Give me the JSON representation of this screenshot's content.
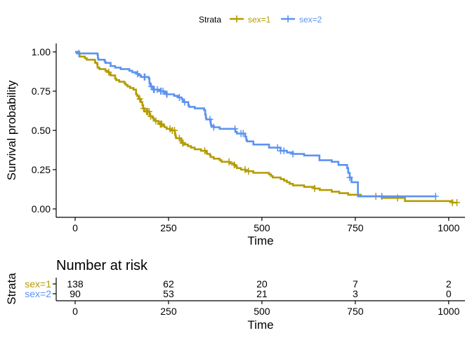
{
  "legend": {
    "title": "Strata",
    "position": "top"
  },
  "chart_data": [
    {
      "type": "line",
      "step": true,
      "xlabel": "Time",
      "ylabel": "Survival probability",
      "xlim": [
        0,
        1022
      ],
      "ylim": [
        0,
        1
      ],
      "xticks": [
        0,
        250,
        500,
        750,
        1000
      ],
      "yticks": [
        "0.00",
        "0.25",
        "0.50",
        "0.75",
        "1.00"
      ],
      "grid": false,
      "legend_position": "top",
      "series": [
        {
          "name": "sex=1",
          "color": "#B39C00",
          "steps": [
            [
              0,
              1
            ],
            [
              11,
              0.99
            ],
            [
              12,
              0.97
            ],
            [
              26,
              0.96
            ],
            [
              31,
              0.95
            ],
            [
              53,
              0.94
            ],
            [
              54,
              0.93
            ],
            [
              59,
              0.92
            ],
            [
              60,
              0.9
            ],
            [
              65,
              0.89
            ],
            [
              81,
              0.88
            ],
            [
              88,
              0.87
            ],
            [
              92,
              0.86
            ],
            [
              95,
              0.85
            ],
            [
              107,
              0.83
            ],
            [
              110,
              0.82
            ],
            [
              118,
              0.81
            ],
            [
              132,
              0.8
            ],
            [
              135,
              0.79
            ],
            [
              140,
              0.78
            ],
            [
              147,
              0.77
            ],
            [
              156,
              0.76
            ],
            [
              163,
              0.73
            ],
            [
              166,
              0.72
            ],
            [
              170,
              0.7
            ],
            [
              176,
              0.68
            ],
            [
              180,
              0.66
            ],
            [
              182,
              0.64
            ],
            [
              186,
              0.62
            ],
            [
              199,
              0.6
            ],
            [
              201,
              0.59
            ],
            [
              207,
              0.58
            ],
            [
              210,
              0.57
            ],
            [
              215,
              0.56
            ],
            [
              223,
              0.55
            ],
            [
              225,
              0.54
            ],
            [
              235,
              0.53
            ],
            [
              239,
              0.52
            ],
            [
              245,
              0.51
            ],
            [
              255,
              0.5
            ],
            [
              267,
              0.48
            ],
            [
              268,
              0.47
            ],
            [
              269,
              0.46
            ],
            [
              270,
              0.45
            ],
            [
              283,
              0.44
            ],
            [
              284,
              0.43
            ],
            [
              285,
              0.42
            ],
            [
              293,
              0.41
            ],
            [
              302,
              0.4
            ],
            [
              310,
              0.39
            ],
            [
              320,
              0.38
            ],
            [
              337,
              0.37
            ],
            [
              351,
              0.36
            ],
            [
              353,
              0.35
            ],
            [
              361,
              0.34
            ],
            [
              363,
              0.33
            ],
            [
              371,
              0.32
            ],
            [
              387,
              0.31
            ],
            [
              392,
              0.3
            ],
            [
              413,
              0.29
            ],
            [
              426,
              0.28
            ],
            [
              429,
              0.27
            ],
            [
              433,
              0.26
            ],
            [
              444,
              0.25
            ],
            [
              456,
              0.24
            ],
            [
              477,
              0.23
            ],
            [
              519,
              0.22
            ],
            [
              524,
              0.21
            ],
            [
              529,
              0.2
            ],
            [
              550,
              0.19
            ],
            [
              559,
              0.18
            ],
            [
              567,
              0.17
            ],
            [
              574,
              0.16
            ],
            [
              583,
              0.15
            ],
            [
              613,
              0.14
            ],
            [
              641,
              0.13
            ],
            [
              655,
              0.12
            ],
            [
              687,
              0.11
            ],
            [
              707,
              0.1
            ],
            [
              731,
              0.09
            ],
            [
              765,
              0.08
            ],
            [
              821,
              0.07
            ],
            [
              883,
              0.05
            ],
            [
              1010,
              0.04
            ]
          ],
          "end_x": 1022,
          "censor_x": [
            90,
            173,
            183,
            191,
            192,
            194,
            198,
            202,
            216,
            228,
            229,
            232,
            254,
            260,
            266,
            279,
            288,
            289,
            347,
            412,
            426,
            455,
            464,
            641,
            805,
            863,
            1010,
            1022
          ]
        },
        {
          "name": "sex=2",
          "color": "#5B92F1",
          "steps": [
            [
              0,
              1
            ],
            [
              5,
              0.99
            ],
            [
              60,
              0.98
            ],
            [
              61,
              0.96
            ],
            [
              62,
              0.95
            ],
            [
              79,
              0.94
            ],
            [
              81,
              0.93
            ],
            [
              95,
              0.91
            ],
            [
              107,
              0.9
            ],
            [
              122,
              0.89
            ],
            [
              145,
              0.88
            ],
            [
              153,
              0.87
            ],
            [
              166,
              0.86
            ],
            [
              171,
              0.85
            ],
            [
              176,
              0.84
            ],
            [
              197,
              0.83
            ],
            [
              199,
              0.8
            ],
            [
              201,
              0.79
            ],
            [
              202,
              0.78
            ],
            [
              208,
              0.76
            ],
            [
              226,
              0.75
            ],
            [
              239,
              0.74
            ],
            [
              245,
              0.73
            ],
            [
              265,
              0.72
            ],
            [
              276,
              0.71
            ],
            [
              285,
              0.7
            ],
            [
              288,
              0.69
            ],
            [
              291,
              0.68
            ],
            [
              303,
              0.66
            ],
            [
              305,
              0.65
            ],
            [
              320,
              0.64
            ],
            [
              345,
              0.63
            ],
            [
              348,
              0.6
            ],
            [
              350,
              0.58
            ],
            [
              351,
              0.57
            ],
            [
              363,
              0.54
            ],
            [
              364,
              0.53
            ],
            [
              371,
              0.52
            ],
            [
              387,
              0.51
            ],
            [
              429,
              0.49
            ],
            [
              433,
              0.48
            ],
            [
              455,
              0.46
            ],
            [
              458,
              0.44
            ],
            [
              460,
              0.43
            ],
            [
              477,
              0.41
            ],
            [
              519,
              0.39
            ],
            [
              550,
              0.37
            ],
            [
              567,
              0.36
            ],
            [
              583,
              0.35
            ],
            [
              613,
              0.34
            ],
            [
              654,
              0.31
            ],
            [
              687,
              0.3
            ],
            [
              705,
              0.28
            ],
            [
              728,
              0.26
            ],
            [
              731,
              0.23
            ],
            [
              735,
              0.2
            ],
            [
              740,
              0.17
            ],
            [
              757,
              0.08
            ]
          ],
          "end_x": 965,
          "censor_x": [
            10,
            167,
            185,
            187,
            204,
            210,
            212,
            220,
            229,
            230,
            235,
            245,
            246,
            279,
            293,
            361,
            371,
            428,
            444,
            450,
            542,
            550,
            559,
            583,
            735,
            821,
            965
          ]
        }
      ]
    },
    {
      "type": "table",
      "title": "Number at risk",
      "xlabel": "Time",
      "ylabel": "Strata",
      "xticks": [
        0,
        250,
        500,
        750,
        1000
      ],
      "rows": [
        {
          "name": "sex=1",
          "color": "#B39C00",
          "values": [
            "138",
            "62",
            "20",
            "7",
            "2"
          ]
        },
        {
          "name": "sex=2",
          "color": "#5B92F1",
          "values": [
            "90",
            "53",
            "21",
            "3",
            "0"
          ]
        }
      ]
    }
  ]
}
